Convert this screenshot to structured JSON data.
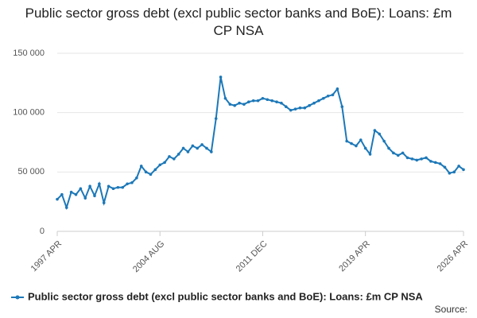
{
  "chart_data": {
    "type": "line",
    "title": "Public sector gross debt (excl public sector banks and BoE): Loans: £m CP NSA",
    "categories": [
      "1997 APR",
      null,
      null,
      null,
      null,
      null,
      null,
      null,
      null,
      null,
      null,
      null,
      null,
      null,
      null,
      null,
      null,
      null,
      null,
      null,
      null,
      null,
      "2004 AUG",
      null,
      null,
      null,
      null,
      null,
      null,
      null,
      null,
      null,
      null,
      null,
      null,
      null,
      null,
      null,
      null,
      null,
      null,
      null,
      null,
      null,
      "2011 DEC",
      null,
      null,
      null,
      null,
      null,
      null,
      null,
      null,
      null,
      null,
      null,
      null,
      null,
      null,
      null,
      null,
      null,
      null,
      null,
      null,
      null,
      "2019 APR",
      null,
      null,
      null,
      null,
      null,
      null,
      null,
      null,
      null,
      null,
      null,
      null,
      null,
      null,
      null,
      null,
      null,
      null,
      null,
      null,
      "2026 APR"
    ],
    "series": [
      {
        "name": "Public sector gross debt (excl public sector banks and BoE): Loans: £m CP NSA",
        "color": "#1c78b8",
        "values": [
          27000,
          31000,
          20000,
          33000,
          31000,
          36000,
          28000,
          38000,
          30000,
          40000,
          24000,
          38000,
          36000,
          37000,
          37000,
          40000,
          41000,
          45000,
          55000,
          50000,
          48000,
          52000,
          56000,
          58000,
          63000,
          61000,
          65000,
          70000,
          67000,
          72000,
          70000,
          73000,
          70000,
          67000,
          95000,
          130000,
          112000,
          107000,
          106000,
          108000,
          107000,
          109000,
          110000,
          110000,
          112000,
          111000,
          110000,
          109000,
          108000,
          105000,
          102000,
          103000,
          104000,
          104000,
          106000,
          108000,
          110000,
          112000,
          114000,
          115000,
          120000,
          105000,
          76000,
          74000,
          72000,
          77000,
          70000,
          65000,
          85000,
          82000,
          76000,
          70000,
          66000,
          64000,
          66000,
          62000,
          61000,
          60000,
          61000,
          62000,
          59000,
          58000,
          57000,
          54000,
          49000,
          50000,
          55000,
          52000
        ]
      }
    ],
    "ylim": [
      0,
      150000
    ],
    "yticks": [
      0,
      {
        "value": 50000,
        "label": "50 000"
      },
      {
        "value": 100000,
        "label": "100 000"
      },
      {
        "value": 150000,
        "label": "150 000"
      }
    ],
    "grid": true,
    "source": "Source:"
  }
}
